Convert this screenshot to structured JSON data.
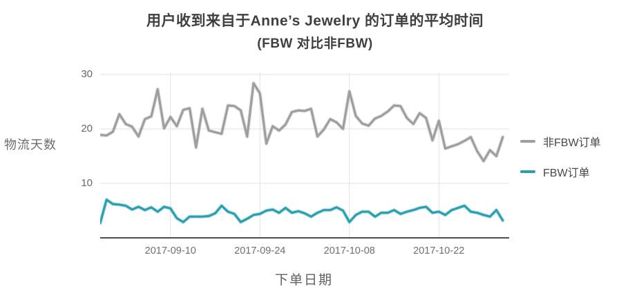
{
  "title": {
    "line1": "用户收到来自于Anne’s Jewelry 的订单的平均时间",
    "line2": "(FBW 对比非FBW)"
  },
  "y_axis": {
    "label": "物流天数",
    "ticks": [
      10,
      20,
      30
    ]
  },
  "x_axis": {
    "label": "下单日期",
    "ticks": [
      "2017-09-10",
      "2017-09-24",
      "2017-10-08",
      "2017-10-22"
    ]
  },
  "legend": [
    {
      "label": "非FBW订单",
      "color": "#9e9e9e"
    },
    {
      "label": "FBW订单",
      "color": "#2b9fb2"
    }
  ],
  "colors": {
    "grid": "#e2e2e2",
    "axis": "#4d4d4d",
    "tick_text": "#666666",
    "background": "#ffffff"
  },
  "chart_data": {
    "type": "line",
    "title": "用户收到来自于Anne’s Jewelry 的订单的平均时间 (FBW 对比非FBW)",
    "xlabel": "下单日期",
    "ylabel": "物流天数",
    "ylim": [
      0,
      31
    ],
    "grid": true,
    "legend_position": "right",
    "x": [
      "2017-08-30",
      "2017-08-31",
      "2017-09-01",
      "2017-09-02",
      "2017-09-03",
      "2017-09-04",
      "2017-09-05",
      "2017-09-06",
      "2017-09-07",
      "2017-09-08",
      "2017-09-09",
      "2017-09-10",
      "2017-09-11",
      "2017-09-12",
      "2017-09-13",
      "2017-09-14",
      "2017-09-15",
      "2017-09-16",
      "2017-09-17",
      "2017-09-18",
      "2017-09-19",
      "2017-09-20",
      "2017-09-21",
      "2017-09-22",
      "2017-09-23",
      "2017-09-24",
      "2017-09-25",
      "2017-09-26",
      "2017-09-27",
      "2017-09-28",
      "2017-09-29",
      "2017-09-30",
      "2017-10-01",
      "2017-10-02",
      "2017-10-03",
      "2017-10-04",
      "2017-10-05",
      "2017-10-06",
      "2017-10-07",
      "2017-10-08",
      "2017-10-09",
      "2017-10-10",
      "2017-10-11",
      "2017-10-12",
      "2017-10-13",
      "2017-10-14",
      "2017-10-15",
      "2017-10-16",
      "2017-10-17",
      "2017-10-18",
      "2017-10-19",
      "2017-10-20",
      "2017-10-21",
      "2017-10-22",
      "2017-10-23",
      "2017-10-24",
      "2017-10-25",
      "2017-10-26",
      "2017-10-27",
      "2017-10-28",
      "2017-10-29",
      "2017-10-30",
      "2017-10-31",
      "2017-11-01"
    ],
    "series": [
      {
        "name": "非FBW订单",
        "color": "#9e9e9e",
        "values": [
          18.9,
          18.8,
          19.5,
          22.7,
          20.9,
          20.4,
          18.6,
          21.8,
          22.3,
          27.3,
          20.1,
          22.2,
          20.5,
          23.5,
          23.8,
          16.6,
          23.7,
          19.7,
          19.4,
          19.1,
          24.3,
          24.2,
          23.4,
          18.6,
          28.4,
          26.5,
          17.3,
          20.5,
          19.7,
          20.8,
          23.1,
          23.4,
          23.3,
          23.7,
          18.6,
          19.9,
          21.8,
          21.2,
          20.0,
          26.9,
          22.4,
          21.0,
          20.6,
          21.9,
          22.4,
          23.2,
          24.3,
          24.2,
          22.0,
          20.9,
          22.9,
          22.0,
          17.9,
          21.5,
          16.4,
          16.8,
          17.2,
          17.8,
          18.5,
          15.9,
          14.1,
          16.1,
          15.0,
          18.5
        ]
      },
      {
        "name": "FBW订单",
        "color": "#2b9fb2",
        "values": [
          2.7,
          7.0,
          6.2,
          6.1,
          5.9,
          5.2,
          5.7,
          5.1,
          5.6,
          4.8,
          5.7,
          5.4,
          3.6,
          2.9,
          3.9,
          3.9,
          3.9,
          4.0,
          4.5,
          5.9,
          4.8,
          4.4,
          2.9,
          3.5,
          4.2,
          4.4,
          5.0,
          5.2,
          4.6,
          5.5,
          4.6,
          4.9,
          4.5,
          3.9,
          4.6,
          5.1,
          5.1,
          5.6,
          5.0,
          2.9,
          4.2,
          4.8,
          4.8,
          3.9,
          4.6,
          4.6,
          5.1,
          4.4,
          4.8,
          5.1,
          5.5,
          5.7,
          4.6,
          4.8,
          4.2,
          5.1,
          5.5,
          5.9,
          4.8,
          4.6,
          4.2,
          3.9,
          5.1,
          3.2
        ]
      }
    ]
  }
}
